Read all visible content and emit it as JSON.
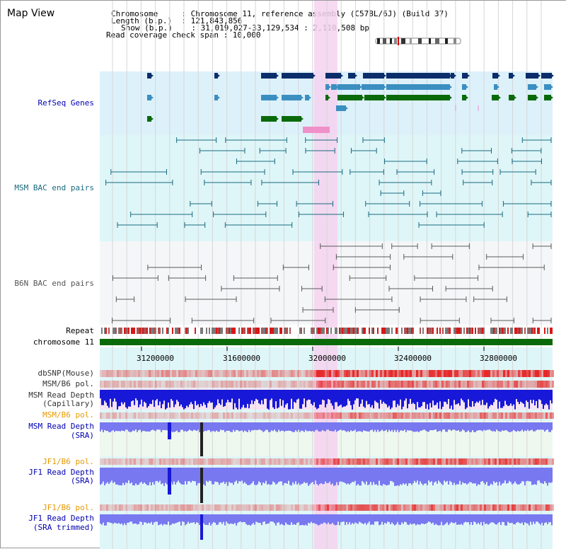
{
  "title": "Map View",
  "header": {
    "lines": [
      "Chromosome     : Chromosome 11, reference assembly (C57BL/6J) (Build 37)",
      "Length (b.p.)  : 121,843,856",
      "Show (b.p.)    : 31,019,027-33,129,534 : 2,110,508 bp",
      "Read coverage check span : 10,000"
    ]
  },
  "tracks": {
    "refseq": "RefSeq Genes",
    "msm_bac": "MSM BAC end pairs",
    "b6n_bac": "B6N BAC end pairs",
    "repeat": "Repeat",
    "chromosome": "chromosome 11",
    "dbsnp": "dbSNP(Mouse)",
    "msm_b6_pol_1": "MSM/B6 pol.",
    "msm_depth_cap_1": "MSM Read Depth",
    "msm_depth_cap_2": "(Capillary)",
    "msm_b6_pol_2": "MSM/B6 pol.",
    "msm_depth_sra_1": "MSM Read Depth",
    "msm_depth_sra_2": "(SRA)",
    "jf1_b6_pol_1": "JF1/B6 pol.",
    "jf1_depth_sra_1": "JF1 Read Depth",
    "jf1_depth_sra_2": "(SRA)",
    "jf1_b6_pol_2": "JF1/B6 pol.",
    "jf1_depth_trim_1": "JF1 Read Depth",
    "jf1_depth_trim_2": "(SRA trimmed)"
  },
  "axis": {
    "ticks": [
      "31200000",
      "31600000",
      "32000000",
      "32400000",
      "32800000"
    ]
  },
  "colors": {
    "refseq_bg": "#ddf1fb",
    "msm_bg": "#def6f8",
    "b6n_bg": "#f4f6f8",
    "highlight": "#f6d2f0",
    "gene_dark": "#0b2e6b",
    "gene_mid": "#3a8fc0",
    "gene_green": "#0a6a0a",
    "bac_msm": "#1a6a80",
    "bac_b6n": "#5a5a5a",
    "chromosome": "#0a6a0a",
    "depth_blue": "#1818d8",
    "depth_light": "#7878f0"
  }
}
